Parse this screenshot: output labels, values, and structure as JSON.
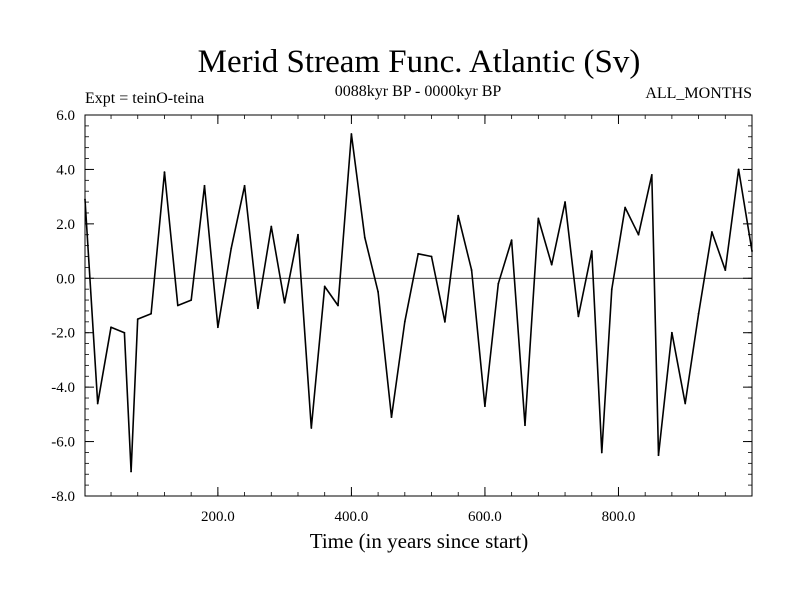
{
  "chart_data": {
    "type": "line",
    "title": "Merid Stream Func. Atlantic (Sv)",
    "experiment": "Expt = teinO-teina",
    "period": "0088kyr BP - 0000kyr BP",
    "season": "ALL_MONTHS",
    "xlabel": "Time (in years since start)",
    "ylabel": "",
    "xlim": [
      1,
      1000
    ],
    "ylim": [
      -8.0,
      6.0
    ],
    "x_ticks": [
      200,
      400,
      600,
      800
    ],
    "x_tick_labels": [
      "200.0",
      "400.0",
      "600.0",
      "800.0"
    ],
    "y_ticks": [
      6.0,
      4.0,
      2.0,
      0.0,
      -2.0,
      -4.0,
      -6.0,
      -8.0
    ],
    "y_tick_labels": [
      "6.0",
      "4.0",
      "2.0",
      "0.0",
      "-2.0",
      "-4.0",
      "-6.0",
      "-8.0"
    ],
    "zero_line": 0.0,
    "series": [
      {
        "name": "Merid Stream Func. Atlantic",
        "x": [
          1,
          20,
          40,
          60,
          70,
          80,
          100,
          120,
          140,
          160,
          180,
          200,
          220,
          240,
          260,
          280,
          300,
          320,
          340,
          360,
          380,
          400,
          420,
          440,
          460,
          480,
          500,
          520,
          540,
          560,
          580,
          600,
          620,
          640,
          660,
          680,
          700,
          720,
          740,
          760,
          775,
          790,
          810,
          830,
          850,
          860,
          880,
          900,
          920,
          940,
          960,
          980,
          1000
        ],
        "values": [
          2.9,
          -4.6,
          -1.8,
          -2.0,
          -7.1,
          -1.5,
          -1.3,
          3.9,
          -1.0,
          -0.8,
          3.4,
          -1.8,
          1.1,
          3.4,
          -1.1,
          1.9,
          -0.9,
          1.6,
          -5.5,
          -0.3,
          -1.0,
          5.3,
          1.5,
          -0.5,
          -5.1,
          -1.6,
          0.9,
          0.8,
          -1.6,
          2.3,
          0.3,
          -4.7,
          -0.2,
          1.4,
          -5.4,
          2.2,
          0.5,
          2.8,
          -1.4,
          1.0,
          -6.4,
          -0.4,
          2.6,
          1.6,
          3.8,
          -6.5,
          -2.0,
          -4.6,
          -1.3,
          1.7,
          0.3,
          4.0,
          1.0
        ]
      }
    ]
  }
}
